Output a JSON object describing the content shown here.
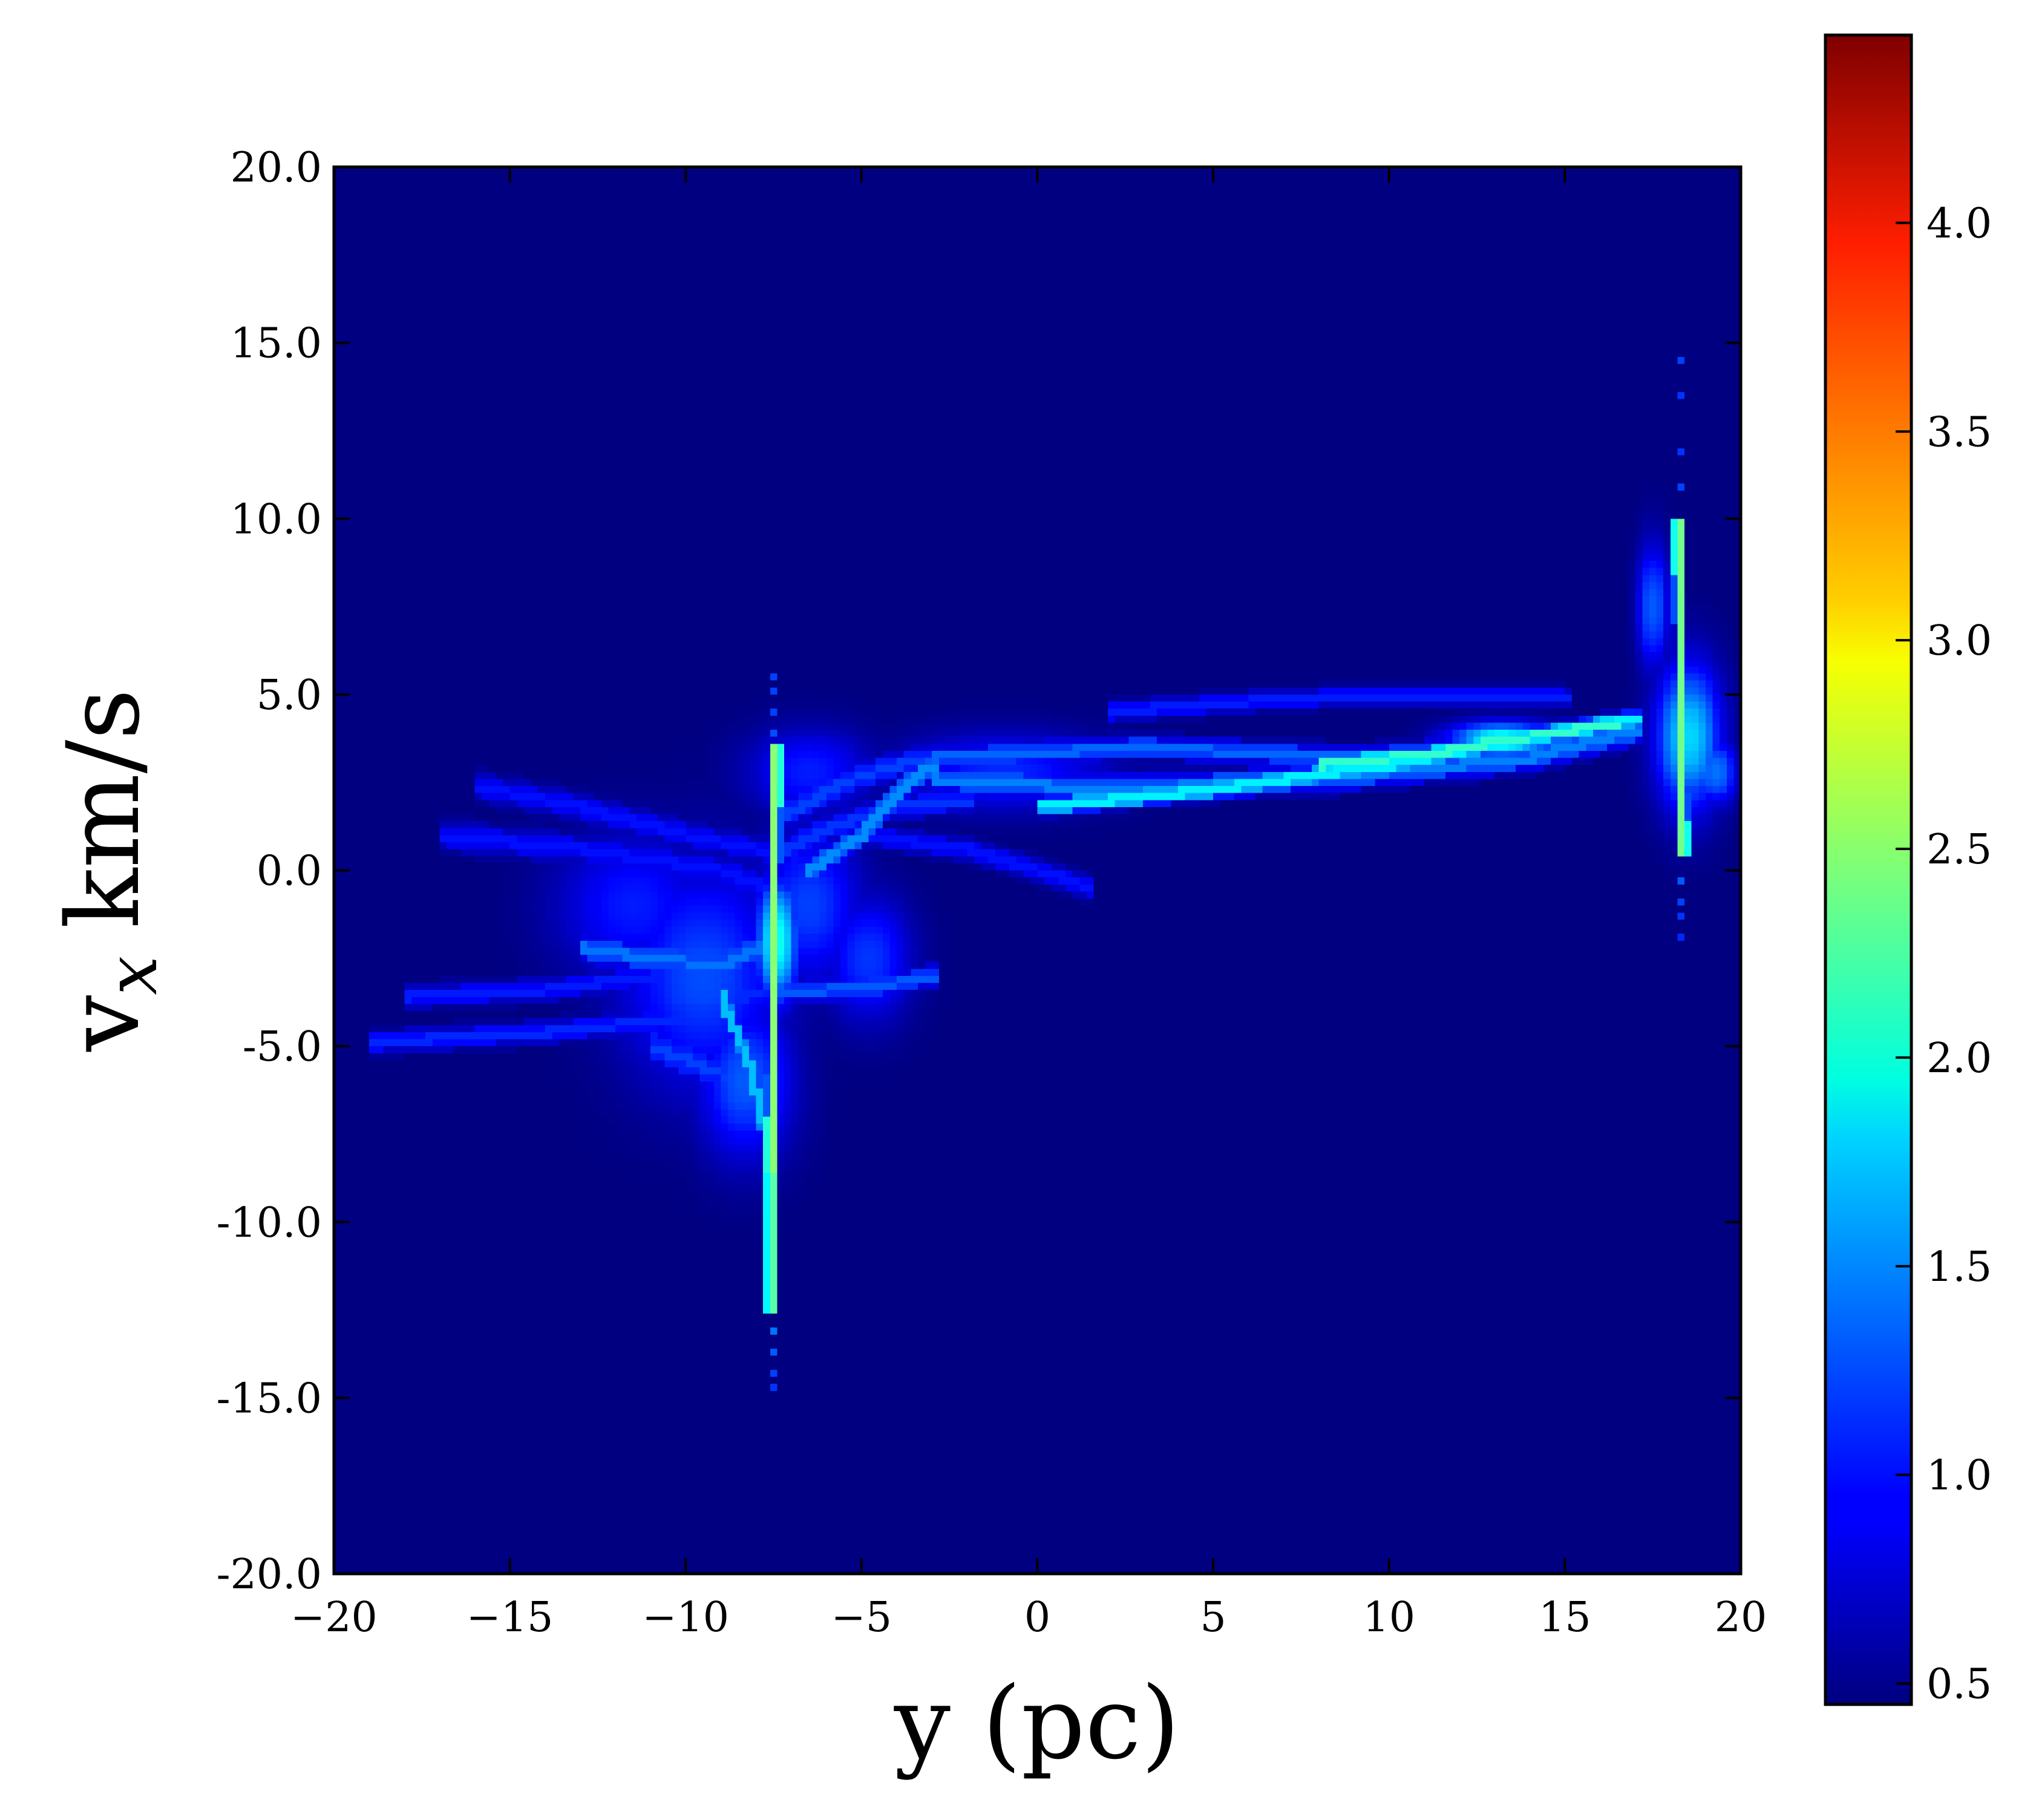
{
  "chart_data": {
    "type": "heatmap",
    "title": "",
    "xlabel": "y (pc)",
    "ylabel": "v",
    "ylabel_subscript": "x",
    "ylabel_unit": "km/s",
    "xlim": [
      -20,
      20
    ],
    "ylim": [
      -20,
      20
    ],
    "x_ticks": [
      -20,
      -15,
      -10,
      -5,
      0,
      5,
      10,
      15,
      20
    ],
    "x_tick_labels": [
      "−20",
      "−15",
      "−10",
      "−5",
      "0",
      "5",
      "10",
      "15",
      "20"
    ],
    "y_ticks": [
      20,
      15,
      10,
      5,
      0,
      -5,
      -10,
      -15,
      -20
    ],
    "y_tick_labels": [
      "20.0",
      "15.0",
      "10.0",
      "5.0",
      "0.0",
      "-5.0",
      "-10.0",
      "-15.0",
      "-20.0"
    ],
    "grid": false,
    "colormap": "jet",
    "colorbar": {
      "range": [
        0.45,
        4.45
      ],
      "ticks": [
        0.5,
        1.0,
        1.5,
        2.0,
        2.5,
        3.0,
        3.5,
        4.0
      ],
      "tick_labels": [
        "0.5",
        "1.0",
        "1.5",
        "2.0",
        "2.5",
        "3.0",
        "3.5",
        "4.0"
      ]
    },
    "background_value": 0.45,
    "structures": [
      {
        "kind": "filament",
        "y": [
          -19,
          -14,
          -10,
          -8
        ],
        "vx": [
          -4.9,
          -4.6,
          -4.2,
          -3.5
        ],
        "width": 0.35,
        "value": 1.1
      },
      {
        "kind": "filament",
        "y": [
          -18,
          -14,
          -11,
          -9
        ],
        "vx": [
          -3.6,
          -3.4,
          -3.0,
          -2.8
        ],
        "width": 0.35,
        "value": 1.05
      },
      {
        "kind": "filament",
        "y": [
          -16,
          -13,
          -10,
          -7
        ],
        "vx": [
          2.4,
          1.8,
          1.0,
          0.4
        ],
        "width": 0.45,
        "value": 1.0
      },
      {
        "kind": "filament",
        "y": [
          -17,
          -13,
          -9,
          -7
        ],
        "vx": [
          1.0,
          0.6,
          0.0,
          -0.8
        ],
        "width": 0.5,
        "value": 1.0
      },
      {
        "kind": "filament",
        "y": [
          -13,
          -11,
          -9,
          -7.5
        ],
        "vx": [
          -2.2,
          -2.5,
          -2.7,
          -2.0
        ],
        "width": 0.5,
        "value": 1.4
      },
      {
        "kind": "filament",
        "y": [
          -11,
          -9,
          -8,
          -7.5
        ],
        "vx": [
          -5.0,
          -5.8,
          -6.6,
          -7.8
        ],
        "width": 0.7,
        "value": 1.2
      },
      {
        "kind": "filament",
        "y": [
          -9,
          -8.2,
          -7.6
        ],
        "vx": [
          -3.5,
          -5.5,
          -8.0
        ],
        "width": 0.2,
        "value": 1.7
      },
      {
        "kind": "filament",
        "y": [
          -7.5,
          -6,
          -4.5,
          -3
        ],
        "vx": [
          -3.5,
          -3.4,
          -3.3,
          -3.0
        ],
        "width": 0.35,
        "value": 1.3
      },
      {
        "kind": "filament",
        "y": [
          -7.3,
          -5.5,
          -4,
          -3
        ],
        "vx": [
          1.5,
          2.5,
          3.0,
          3.2
        ],
        "width": 0.45,
        "value": 1.2
      },
      {
        "kind": "filament",
        "y": [
          -7.3,
          -6,
          -4,
          -2
        ],
        "vx": [
          0.5,
          1.2,
          1.8,
          2.0
        ],
        "width": 0.4,
        "value": 1.15
      },
      {
        "kind": "filament",
        "y": [
          -6.5,
          -5,
          -4,
          -3
        ],
        "vx": [
          0.0,
          1.0,
          2.2,
          3.0
        ],
        "width": 0.3,
        "value": 1.5
      },
      {
        "kind": "filament",
        "y": [
          -5,
          -2,
          0,
          1.5
        ],
        "vx": [
          1.0,
          0.6,
          0.0,
          -0.5
        ],
        "width": 0.35,
        "value": 1.0
      },
      {
        "kind": "filament",
        "y": [
          -3,
          2,
          8,
          14,
          17
        ],
        "vx": [
          2.6,
          2.3,
          2.6,
          3.2,
          4.0
        ],
        "width": 0.45,
        "value": 1.45
      },
      {
        "kind": "filament",
        "y": [
          -3,
          3,
          9,
          14,
          17
        ],
        "vx": [
          3.2,
          3.5,
          3.2,
          3.6,
          4.1
        ],
        "width": 0.35,
        "value": 1.35
      },
      {
        "kind": "filament",
        "y": [
          2,
          6,
          10,
          15
        ],
        "vx": [
          4.5,
          4.8,
          5.0,
          4.9
        ],
        "width": 0.3,
        "value": 1.05
      },
      {
        "kind": "filament",
        "y": [
          0,
          5,
          10,
          14,
          17
        ],
        "vx": [
          1.8,
          2.3,
          3.0,
          3.8,
          4.3
        ],
        "width": 0.25,
        "value": 1.9
      },
      {
        "kind": "filament",
        "y": [
          8,
          11,
          14,
          16.5
        ],
        "vx": [
          3.0,
          3.3,
          3.8,
          4.2
        ],
        "width": 0.2,
        "value": 2.15
      },
      {
        "kind": "streak",
        "y": [
          -7.4,
          -7.5,
          -7.6
        ],
        "vx": [
          3.5,
          -3.0,
          -8.5
        ],
        "width": 0.12,
        "value": 2.5
      },
      {
        "kind": "streak",
        "y": [
          -7.6,
          -7.6
        ],
        "vx": [
          -8.5,
          -12.5
        ],
        "width": 0.1,
        "value": 2.3
      },
      {
        "kind": "streak",
        "y": [
          18.2,
          18.3,
          18.4
        ],
        "vx": [
          10.0,
          4.0,
          0.5
        ],
        "width": 0.12,
        "value": 2.4
      },
      {
        "kind": "blob",
        "y": 18.5,
        "vx": 3.8,
        "sy": 0.6,
        "svx": 1.4,
        "value": 1.8
      },
      {
        "kind": "blob",
        "y": 17.5,
        "vx": 7.5,
        "sy": 0.25,
        "svx": 1.2,
        "value": 1.3
      },
      {
        "kind": "blob",
        "y": 19.3,
        "vx": 2.8,
        "sy": 0.35,
        "svx": 0.6,
        "value": 1.4
      },
      {
        "kind": "blob",
        "y": -9.5,
        "vx": -3.0,
        "sy": 1.6,
        "svx": 2.2,
        "value": 1.25
      },
      {
        "kind": "blob",
        "y": -8.3,
        "vx": -6.0,
        "sy": 0.9,
        "svx": 1.5,
        "value": 1.3
      },
      {
        "kind": "blob",
        "y": -6.5,
        "vx": -1.0,
        "sy": 1.0,
        "svx": 1.5,
        "value": 1.2
      },
      {
        "kind": "blob",
        "y": -11.5,
        "vx": -1.0,
        "sy": 1.5,
        "svx": 1.4,
        "value": 1.05
      },
      {
        "kind": "blob",
        "y": -4.8,
        "vx": -2.5,
        "sy": 0.8,
        "svx": 1.2,
        "value": 1.15
      },
      {
        "kind": "blob",
        "y": -6.5,
        "vx": 2.8,
        "sy": 1.2,
        "svx": 0.8,
        "value": 1.05
      },
      {
        "kind": "blob",
        "y": -1,
        "vx": 2.8,
        "sy": 2.0,
        "svx": 0.7,
        "value": 1.1
      },
      {
        "kind": "blob",
        "y": -7.4,
        "vx": -2.0,
        "sy": 0.35,
        "svx": 1.2,
        "value": 2.0
      },
      {
        "kind": "blob",
        "y": 13.2,
        "vx": 3.7,
        "sy": 1.0,
        "svx": 0.3,
        "value": 2.0
      }
    ],
    "dots": [
      {
        "y": -7.4,
        "vx": 5.6,
        "value": 1.2
      },
      {
        "y": -7.4,
        "vx": 5.2,
        "value": 1.2
      },
      {
        "y": -7.4,
        "vx": 4.6,
        "value": 1.2
      },
      {
        "y": -7.4,
        "vx": 4.0,
        "value": 1.25
      },
      {
        "y": -7.6,
        "vx": -13.0,
        "value": 1.4
      },
      {
        "y": -7.6,
        "vx": -13.6,
        "value": 1.3
      },
      {
        "y": -7.6,
        "vx": -14.2,
        "value": 1.2
      },
      {
        "y": -7.6,
        "vx": -14.8,
        "value": 1.15
      },
      {
        "y": 18.2,
        "vx": 14.5,
        "value": 1.2
      },
      {
        "y": 18.2,
        "vx": 13.5,
        "value": 1.15
      },
      {
        "y": 18.2,
        "vx": 12.0,
        "value": 1.15
      },
      {
        "y": 18.3,
        "vx": 11.0,
        "value": 1.2
      },
      {
        "y": 18.4,
        "vx": -0.3,
        "value": 1.3
      },
      {
        "y": 18.4,
        "vx": -0.9,
        "value": 1.2
      },
      {
        "y": 18.4,
        "vx": -1.4,
        "value": 1.15
      },
      {
        "y": 18.4,
        "vx": -1.9,
        "value": 1.1
      }
    ]
  }
}
